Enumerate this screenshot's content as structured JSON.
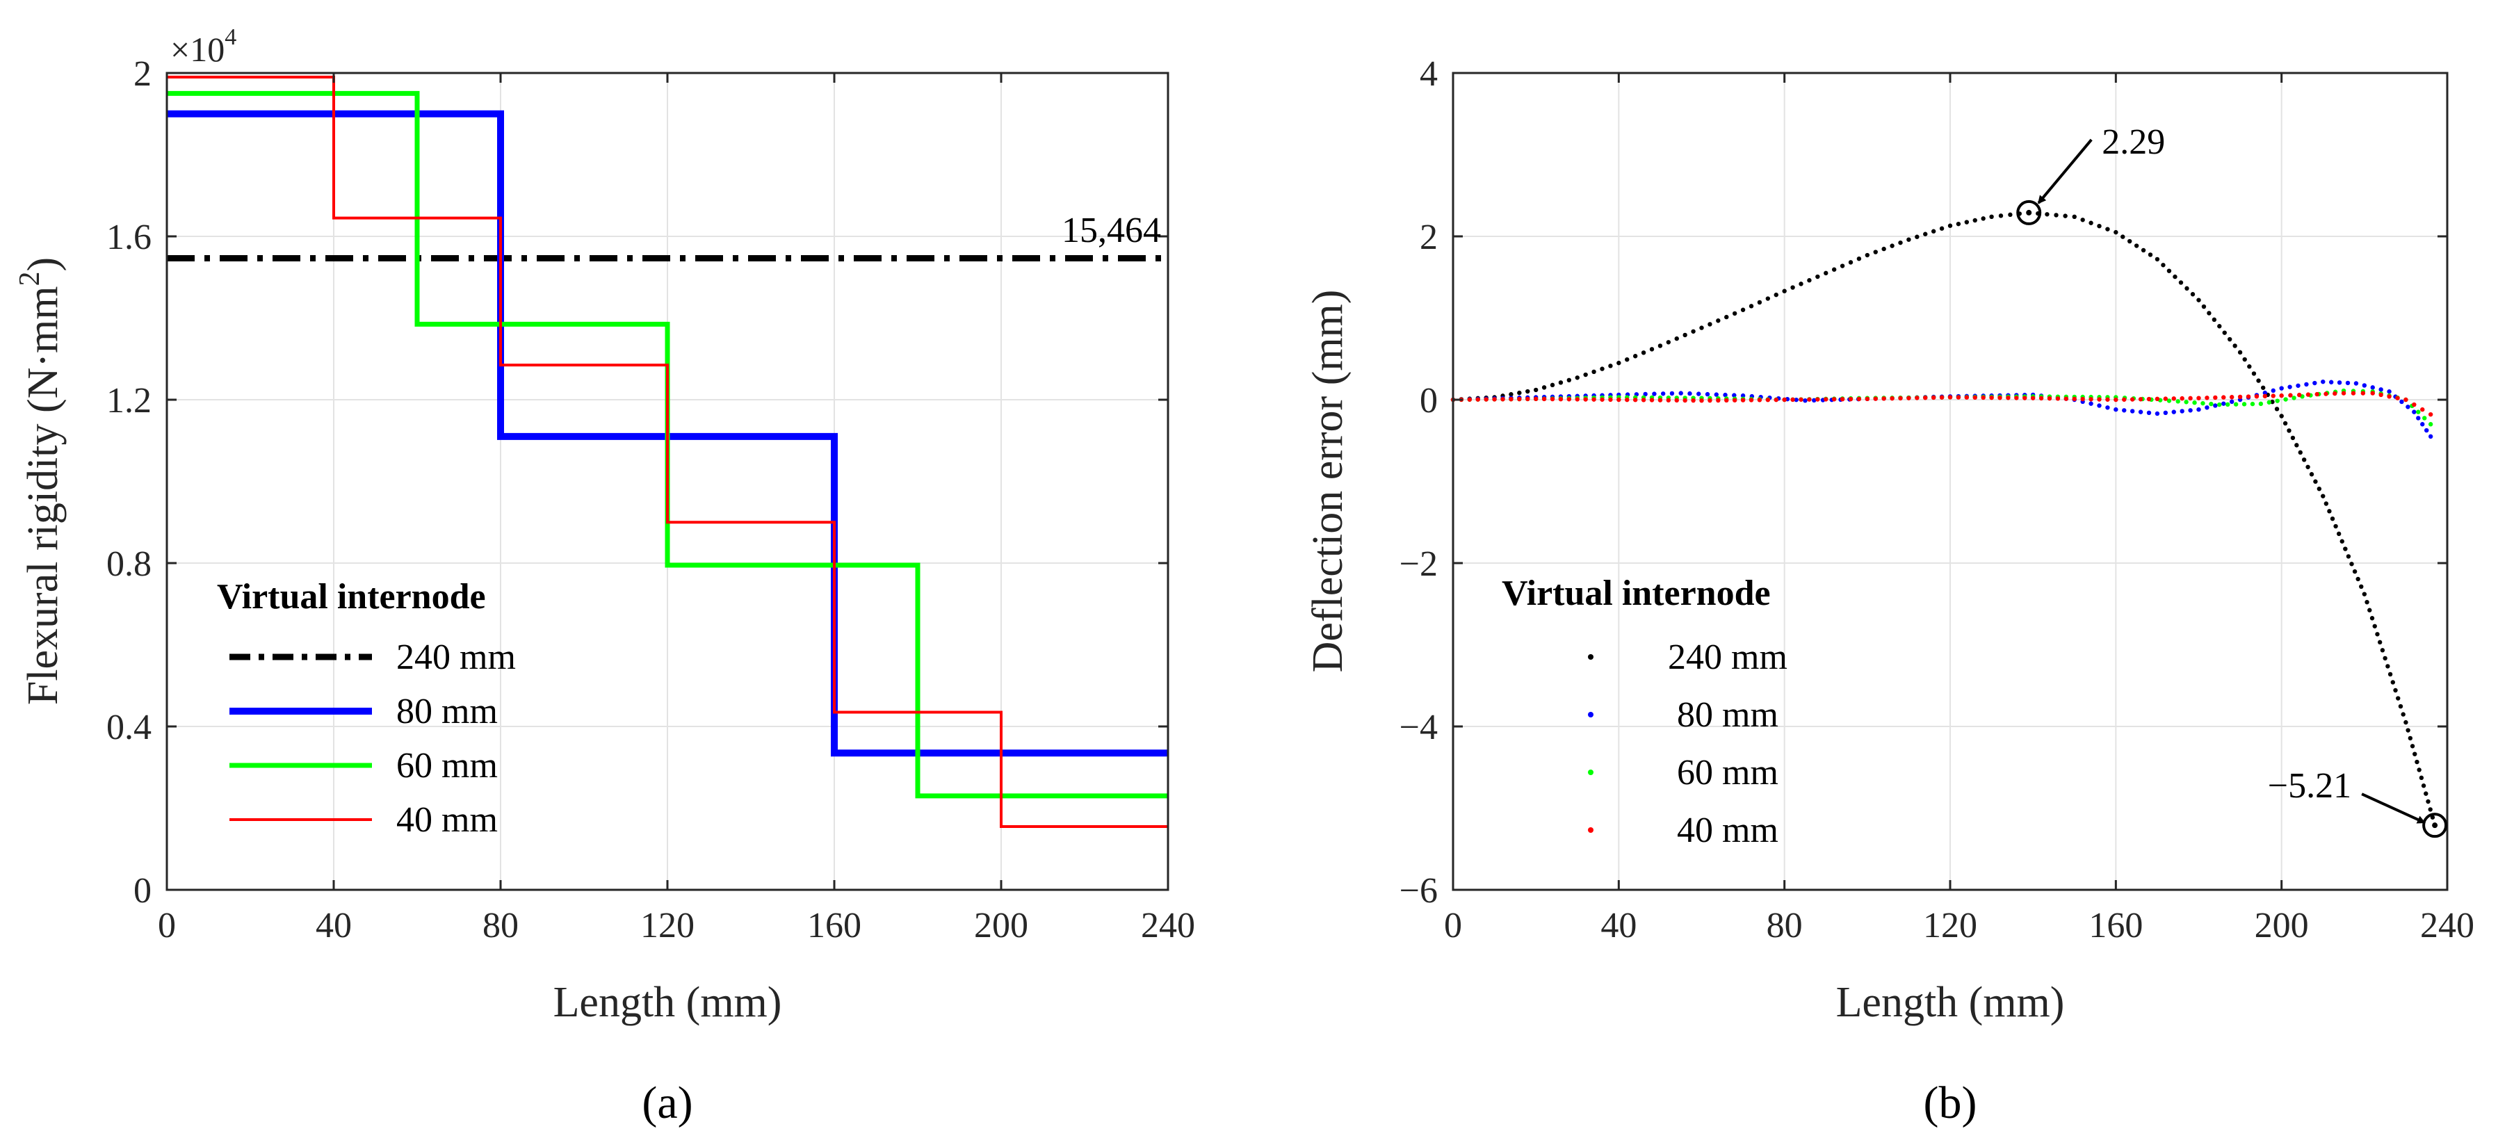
{
  "chart_data": [
    {
      "type": "line",
      "panel": "a",
      "caption": "(a)",
      "xlabel": "Length (mm)",
      "ylabel_main": "Flexural rigidity (N·mm",
      "ylabel_sup": "2",
      "ylabel_close": ")",
      "y_exponent_label": "×10",
      "y_exponent_sup": "4",
      "xlim": [
        0,
        240
      ],
      "ylim": [
        0,
        2
      ],
      "xticks": [
        0,
        40,
        80,
        120,
        160,
        200,
        240
      ],
      "xtick_labels": [
        "0",
        "40",
        "80",
        "120",
        "160",
        "200",
        "240"
      ],
      "yticks": [
        0,
        0.4,
        0.8,
        1.2,
        1.6,
        2
      ],
      "ytick_labels": [
        "0",
        "0.4",
        "0.8",
        "1.2",
        "1.6",
        "2"
      ],
      "legend_title": "Virtual internode",
      "annotation": "15,464",
      "series": [
        {
          "name": "240 mm",
          "color": "#000000",
          "dash": "dashdot",
          "width": 9,
          "points": [
            [
              0,
              1.5464
            ],
            [
              240,
              1.5464
            ]
          ]
        },
        {
          "name": "80 mm",
          "color": "#0000ff",
          "dash": "solid",
          "width": 10,
          "points": [
            [
              0,
              1.9
            ],
            [
              80,
              1.9
            ],
            [
              80,
              1.11
            ],
            [
              160,
              1.11
            ],
            [
              160,
              0.335
            ],
            [
              240,
              0.335
            ]
          ]
        },
        {
          "name": "60 mm",
          "color": "#00ff00",
          "dash": "solid",
          "width": 7,
          "points": [
            [
              0,
              1.95
            ],
            [
              60,
              1.95
            ],
            [
              60,
              1.385
            ],
            [
              120,
              1.385
            ],
            [
              120,
              0.795
            ],
            [
              180,
              0.795
            ],
            [
              180,
              0.23
            ],
            [
              240,
              0.23
            ]
          ]
        },
        {
          "name": "40 mm",
          "color": "#ff0000",
          "dash": "solid",
          "width": 4,
          "points": [
            [
              0,
              1.99
            ],
            [
              40,
              1.99
            ],
            [
              40,
              1.645
            ],
            [
              80,
              1.645
            ],
            [
              80,
              1.285
            ],
            [
              120,
              1.285
            ],
            [
              120,
              0.9
            ],
            [
              160,
              0.9
            ],
            [
              160,
              0.435
            ],
            [
              200,
              0.435
            ],
            [
              200,
              0.155
            ],
            [
              240,
              0.155
            ]
          ]
        }
      ]
    },
    {
      "type": "scatter",
      "panel": "b",
      "caption": "(b)",
      "xlabel": "Length (mm)",
      "ylabel": "Deflection error (mm)",
      "xlim": [
        0,
        240
      ],
      "ylim": [
        -6,
        4
      ],
      "xticks": [
        0,
        40,
        80,
        120,
        160,
        200,
        240
      ],
      "xtick_labels": [
        "0",
        "40",
        "80",
        "120",
        "160",
        "200",
        "240"
      ],
      "yticks": [
        -6,
        -4,
        -2,
        0,
        2,
        4
      ],
      "ytick_labels": [
        "−6",
        "−4",
        "−2",
        "0",
        "2",
        "4"
      ],
      "legend_title": "Virtual internode",
      "annotations": [
        {
          "text": "2.29",
          "x": 139,
          "y": 2.29
        },
        {
          "text": "−5.21",
          "x": 237,
          "y": -5.21
        }
      ],
      "series": [
        {
          "name": "240 mm",
          "color": "#000000",
          "points": [
            [
              0,
              0
            ],
            [
              10,
              0.03
            ],
            [
              20,
              0.12
            ],
            [
              30,
              0.27
            ],
            [
              40,
              0.45
            ],
            [
              50,
              0.66
            ],
            [
              60,
              0.88
            ],
            [
              70,
              1.1
            ],
            [
              80,
              1.33
            ],
            [
              90,
              1.55
            ],
            [
              100,
              1.77
            ],
            [
              110,
              1.96
            ],
            [
              120,
              2.13
            ],
            [
              130,
              2.24
            ],
            [
              139,
              2.29
            ],
            [
              150,
              2.24
            ],
            [
              160,
              2.05
            ],
            [
              170,
              1.72
            ],
            [
              180,
              1.22
            ],
            [
              190,
              0.58
            ],
            [
              200,
              -0.2
            ],
            [
              210,
              -1.18
            ],
            [
              220,
              -2.38
            ],
            [
              230,
              -3.95
            ],
            [
              237,
              -5.21
            ]
          ]
        },
        {
          "name": "80 mm",
          "color": "#0000ff",
          "points": [
            [
              0,
              0
            ],
            [
              20,
              0.03
            ],
            [
              40,
              0.06
            ],
            [
              55,
              0.08
            ],
            [
              70,
              0.05
            ],
            [
              85,
              -0.01
            ],
            [
              100,
              0.01
            ],
            [
              120,
              0.04
            ],
            [
              140,
              0.06
            ],
            [
              150,
              0.0
            ],
            [
              160,
              -0.12
            ],
            [
              170,
              -0.17
            ],
            [
              180,
              -0.12
            ],
            [
              190,
              0.0
            ],
            [
              200,
              0.14
            ],
            [
              210,
              0.22
            ],
            [
              218,
              0.2
            ],
            [
              226,
              0.1
            ],
            [
              232,
              -0.15
            ],
            [
              236,
              -0.45
            ]
          ]
        },
        {
          "name": "60 mm",
          "color": "#00ff00",
          "points": [
            [
              0,
              0
            ],
            [
              20,
              0.01
            ],
            [
              40,
              0.03
            ],
            [
              60,
              0.02
            ],
            [
              80,
              0.0
            ],
            [
              100,
              0.02
            ],
            [
              120,
              0.03
            ],
            [
              140,
              0.04
            ],
            [
              160,
              0.03
            ],
            [
              175,
              -0.02
            ],
            [
              185,
              -0.06
            ],
            [
              195,
              -0.05
            ],
            [
              205,
              0.04
            ],
            [
              215,
              0.11
            ],
            [
              222,
              0.1
            ],
            [
              230,
              0.0
            ],
            [
              236,
              -0.3
            ]
          ]
        },
        {
          "name": "40 mm",
          "color": "#ff0000",
          "points": [
            [
              0,
              0
            ],
            [
              20,
              0.01
            ],
            [
              40,
              0.0
            ],
            [
              60,
              -0.01
            ],
            [
              80,
              0.0
            ],
            [
              100,
              0.01
            ],
            [
              120,
              0.03
            ],
            [
              140,
              0.02
            ],
            [
              160,
              0.0
            ],
            [
              180,
              0.02
            ],
            [
              200,
              0.05
            ],
            [
              215,
              0.08
            ],
            [
              222,
              0.08
            ],
            [
              230,
              0.0
            ],
            [
              236,
              -0.18
            ]
          ]
        }
      ]
    }
  ]
}
